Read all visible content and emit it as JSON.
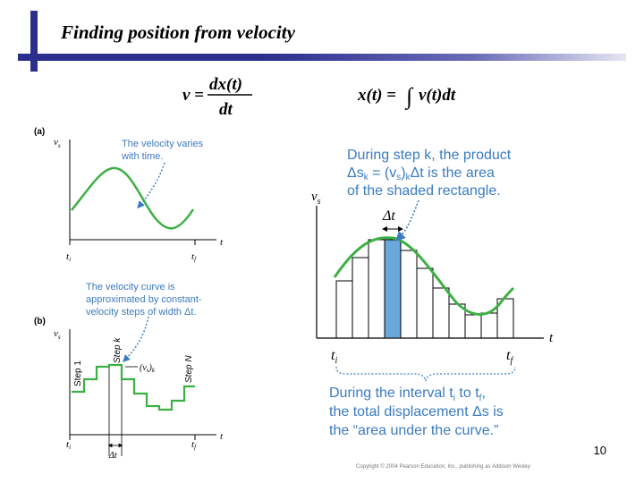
{
  "slide": {
    "title": "Finding position from velocity",
    "number": "10",
    "copyright": "Copyright © 2004 Pearson Education, Inc., publishing as Addison Wesley"
  },
  "colors": {
    "accent_blue": "#2b2e8c",
    "curve_green": "#3cb043",
    "callout_blue": "#3b7bbf",
    "shaded_rect": "#6aa8dc"
  },
  "equations": {
    "left_lhs": "v =",
    "left_num": "dx(t)",
    "left_den": "dt",
    "right_lhs": "x(t) =",
    "right_integral": "∫",
    "right_rhs": "v(t)dt"
  },
  "panel_a": {
    "label": "(a)",
    "y_axis": "v",
    "y_sub": "s",
    "x_axis": "t",
    "ti": "t",
    "ti_sub": "i",
    "tf": "t",
    "tf_sub": "f",
    "callout_line1": "The velocity varies",
    "callout_line2": "with time."
  },
  "panel_b": {
    "label": "(b)",
    "y_axis": "v",
    "y_sub": "s",
    "x_axis": "t",
    "ti": "t",
    "ti_sub": "i",
    "tf": "t",
    "tf_sub": "f",
    "callout_line1": "The velocity curve is",
    "callout_line2": "approximated by constant-",
    "callout_line3": "velocity steps of width Δt.",
    "step1": "Step 1",
    "stepk": "Step k",
    "stepN": "Step N",
    "vsk": "(v",
    "vsk_sub1": "s",
    "vsk_close": ")",
    "vsk_sub2": "k",
    "delta_t": "Δt"
  },
  "panel_c": {
    "callout_line1": "During step k, the product",
    "callout_line2": "Δs",
    "callout_line2b": " = (v",
    "callout_line2c": ")",
    "callout_line2d": "Δt is the area",
    "callout_line3": "of the shaded rectangle.",
    "sub_k": "k",
    "sub_s": "s",
    "y_axis": "v",
    "y_sub": "s",
    "x_axis": "t",
    "delta_t": "Δt",
    "ti": "t",
    "ti_sub": "i",
    "tf": "t",
    "tf_sub": "f",
    "bottom_line1": "During the interval t",
    "bottom_line1_sub1": "i",
    "bottom_line1_mid": " to t",
    "bottom_line1_sub2": "f",
    "bottom_line1_end": ",",
    "bottom_line2": "the total displacement Δs is",
    "bottom_line3": "the “area under the curve.”"
  }
}
